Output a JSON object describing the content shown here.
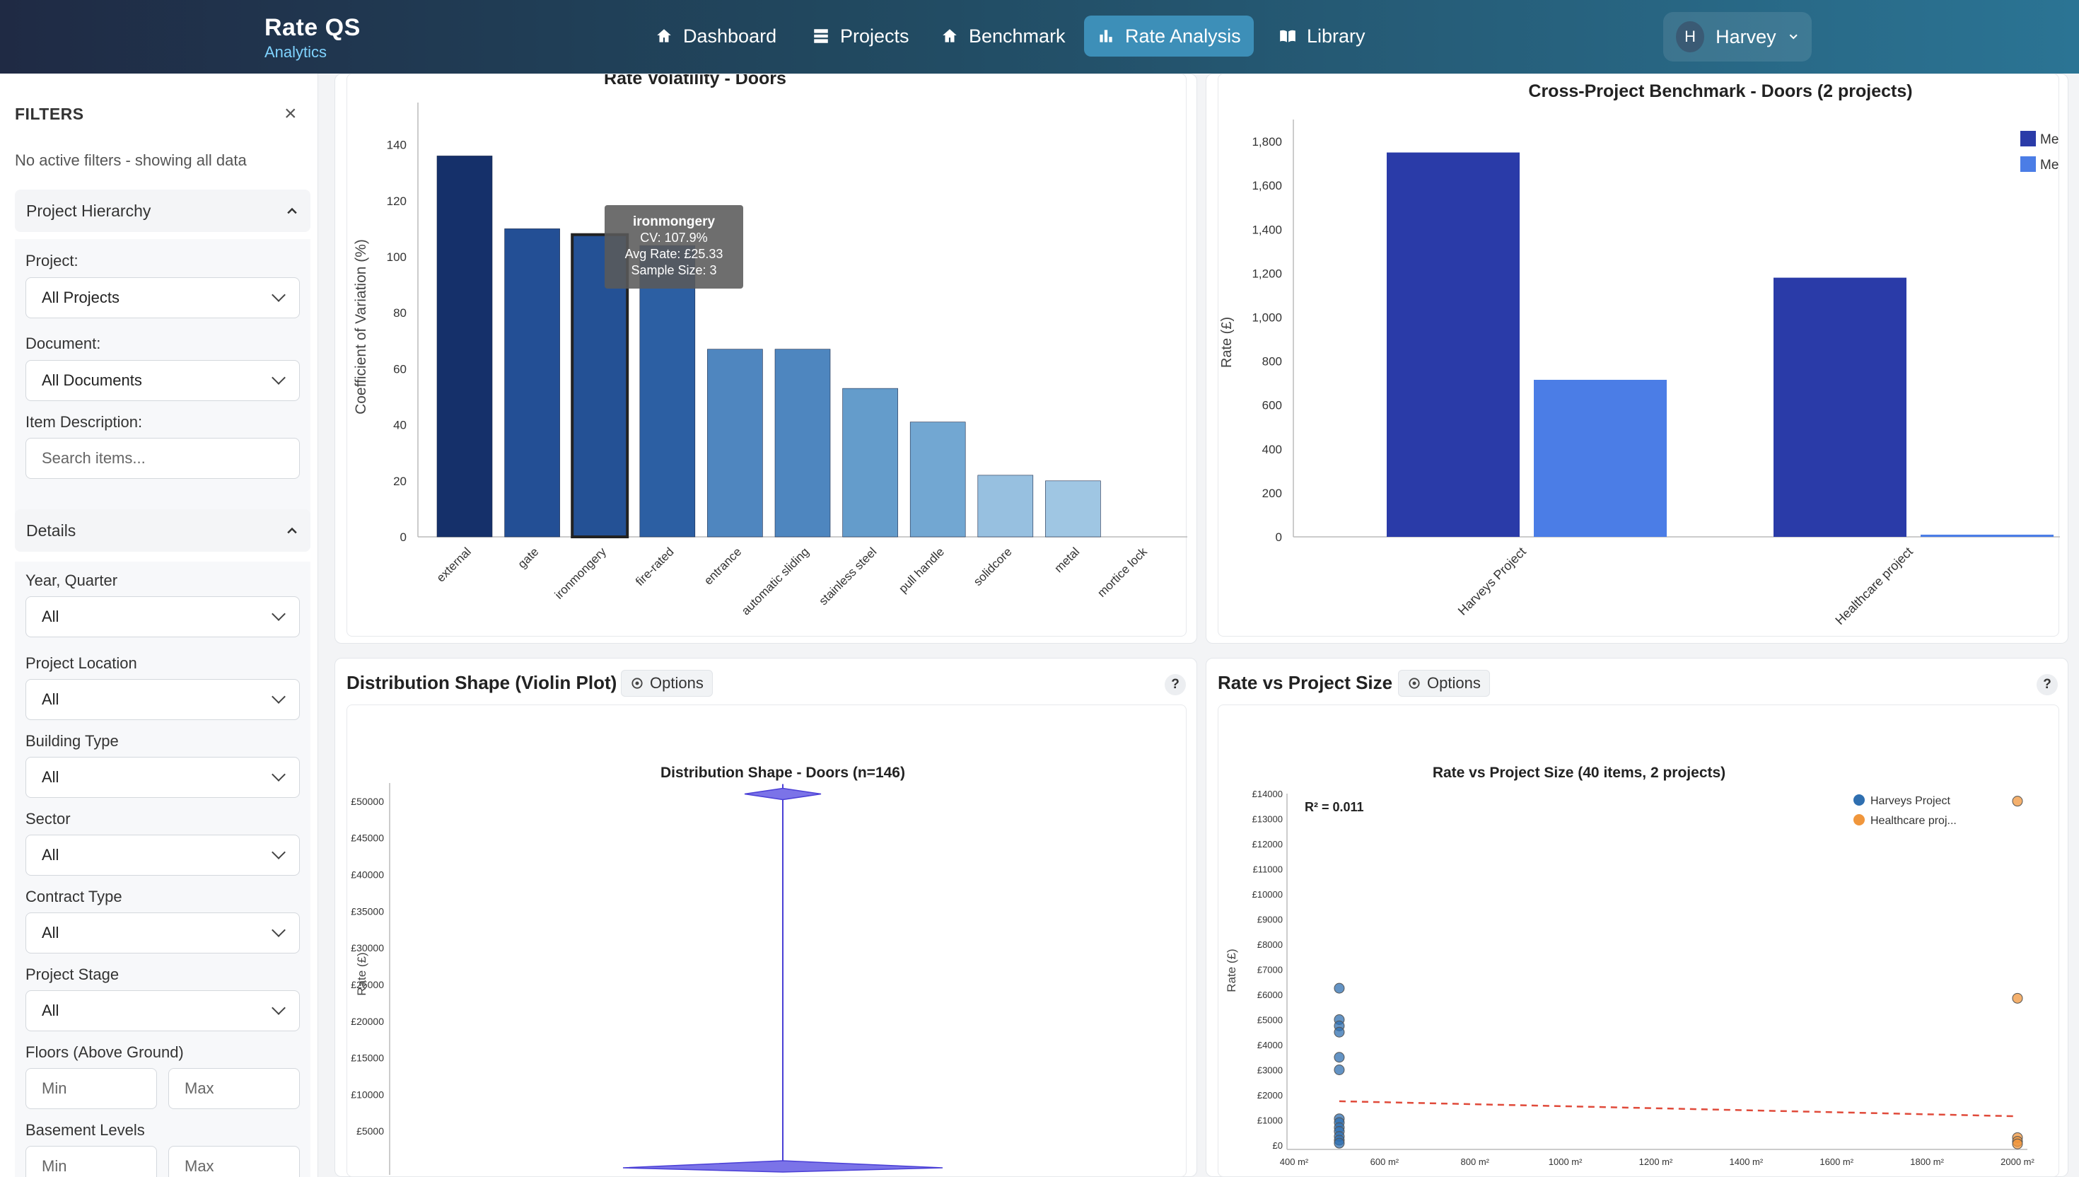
{
  "app": {
    "name": "Rate QS",
    "subtitle": "Analytics"
  },
  "nav": [
    {
      "label": "Dashboard",
      "icon": "home-icon"
    },
    {
      "label": "Projects",
      "icon": "projects-icon"
    },
    {
      "label": "Benchmark",
      "icon": "home-icon"
    },
    {
      "label": "Rate Analysis",
      "icon": "bar-chart-icon",
      "active": true
    },
    {
      "label": "Library",
      "icon": "book-icon"
    }
  ],
  "user": {
    "initial": "H",
    "name": "Harvey"
  },
  "sidebar": {
    "title": "FILTERS",
    "close": "×",
    "status": "No active filters - showing all data",
    "hierarchy_section": "Project Hierarchy",
    "project_label": "Project:",
    "project_value": "All Projects",
    "document_label": "Document:",
    "document_value": "All Documents",
    "item_label": "Item Description:",
    "item_placeholder": "Search items...",
    "details_section": "Details",
    "year_label": "Year, Quarter",
    "year_value": "All",
    "location_label": "Project Location",
    "location_value": "All",
    "building_label": "Building Type",
    "building_value": "All",
    "sector_label": "Sector",
    "sector_value": "All",
    "contract_label": "Contract Type",
    "contract_value": "All",
    "stage_label": "Project Stage",
    "stage_value": "All",
    "floors_label": "Floors (Above Ground)",
    "basement_label": "Basement Levels",
    "min_placeholder": "Min",
    "max_placeholder": "Max"
  },
  "cards": {
    "violin_title": "Distribution Shape (Violin Plot)",
    "scatter_title": "Rate vs Project Size",
    "options_label": "Options",
    "help": "?"
  },
  "chart_data": [
    {
      "type": "bar",
      "title": "Rate Volatility - Doors",
      "ylabel": "Coefficient of Variation (%)",
      "ylim": [
        0,
        150
      ],
      "yticks": [
        0,
        20,
        40,
        60,
        80,
        100,
        120,
        140
      ],
      "categories": [
        "external",
        "gate",
        "ironmongery",
        "fire-rated",
        "entrance",
        "automatic sliding",
        "stainless steel",
        "pull handle",
        "solidcore",
        "metal",
        "mortice lock"
      ],
      "values": [
        136,
        110,
        107.9,
        104,
        67,
        67,
        53,
        41,
        22,
        20,
        0
      ],
      "colors": [
        "#15306a",
        "#234f95",
        "#245195",
        "#2c5fa3",
        "#4f86bf",
        "#4e86bf",
        "#649ccb",
        "#72a7d2",
        "#97c0e0",
        "#9fc6e3",
        "#cfe1f1"
      ],
      "tooltip": {
        "title": "ironmongery",
        "cv": "CV: 107.9%",
        "avg": "Avg Rate: £25.33",
        "n": "Sample Size: 3"
      }
    },
    {
      "type": "bar",
      "title": "Cross-Project Benchmark - Doors (2 projects)",
      "ylabel": "Rate (£)",
      "ylim": [
        0,
        1900
      ],
      "yticks": [
        0,
        200,
        400,
        600,
        800,
        1000,
        1200,
        1400,
        1600,
        1800
      ],
      "ytick_labels": [
        "0",
        "200",
        "400",
        "600",
        "800",
        "1,000",
        "1,200",
        "1,400",
        "1,600",
        "1,800"
      ],
      "categories": [
        "Harveys Project",
        "Healthcare project"
      ],
      "series": [
        {
          "name": "Me",
          "color": "#2a3ba8",
          "values": [
            1750,
            1180
          ]
        },
        {
          "name": "Me",
          "color": "#4b7de6",
          "values": [
            715,
            10
          ]
        }
      ]
    },
    {
      "type": "violin",
      "title": "Distribution Shape - Doors (n=146)",
      "ylabel": "Rate (£)",
      "ylim": [
        0,
        52500
      ],
      "yticks": [
        5000,
        10000,
        15000,
        20000,
        25000,
        30000,
        35000,
        40000,
        45000,
        50000
      ],
      "ytick_labels": [
        "£5000",
        "£10000",
        "£15000",
        "£20000",
        "£25000",
        "£30000",
        "£35000",
        "£40000",
        "£45000",
        "£50000"
      ],
      "max": 51000,
      "min": 0
    },
    {
      "type": "scatter",
      "title": "Rate vs Project Size (40 items, 2 projects)",
      "xlabel": "",
      "ylabel": "Rate (£)",
      "xlim": [
        400,
        2000
      ],
      "ylim": [
        0,
        14000
      ],
      "xticks": [
        400,
        600,
        800,
        1000,
        1200,
        1400,
        1600,
        1800,
        2000
      ],
      "xtick_labels": [
        "400 m²",
        "600 m²",
        "800 m²",
        "1000 m²",
        "1200 m²",
        "1400 m²",
        "1600 m²",
        "1800 m²",
        "2000 m²"
      ],
      "yticks": [
        0,
        1000,
        2000,
        3000,
        4000,
        5000,
        6000,
        7000,
        8000,
        9000,
        10000,
        11000,
        12000,
        13000,
        14000
      ],
      "ytick_labels": [
        "£0",
        "£1000",
        "£2000",
        "£3000",
        "£4000",
        "£5000",
        "£6000",
        "£7000",
        "£8000",
        "£9000",
        "£10000",
        "£11000",
        "£12000",
        "£13000",
        "£14000"
      ],
      "r2": "R² = 0.011",
      "trend": [
        [
          500,
          1750
        ],
        [
          2000,
          1150
        ]
      ],
      "series": [
        {
          "name": "Harveys Project",
          "color": "#2f6fb0",
          "points": [
            [
              500,
              6250
            ],
            [
              500,
              5000
            ],
            [
              500,
              4750
            ],
            [
              500,
              4500
            ],
            [
              500,
              3500
            ],
            [
              500,
              3000
            ],
            [
              500,
              1050
            ],
            [
              500,
              900
            ],
            [
              500,
              700
            ],
            [
              500,
              550
            ],
            [
              500,
              350
            ],
            [
              500,
              200
            ],
            [
              500,
              80
            ]
          ]
        },
        {
          "name": "Healthcare proj...",
          "color": "#f0963c",
          "points": [
            [
              2000,
              13700
            ],
            [
              2000,
              5850
            ],
            [
              2000,
              300
            ],
            [
              2000,
              150
            ],
            [
              2000,
              50
            ]
          ]
        }
      ]
    }
  ]
}
